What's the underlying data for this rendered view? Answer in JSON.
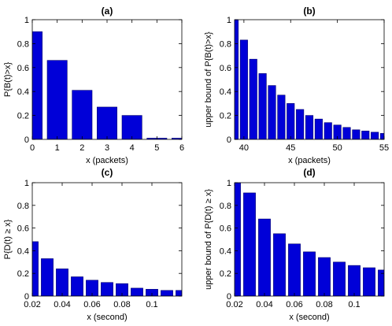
{
  "colors": {
    "bar": "#0000d8",
    "bar_edge": "#00006e",
    "axis": "#000000"
  },
  "chart_data": [
    {
      "id": "a",
      "type": "bar",
      "title": "(a)",
      "xlabel": "x (packets)",
      "ylabel": "P{B(t)>x}",
      "x": [
        0,
        1,
        2,
        3,
        4,
        5,
        6
      ],
      "values": [
        0.9,
        0.66,
        0.41,
        0.27,
        0.2,
        0.01,
        0.01
      ],
      "xlim": [
        0,
        6
      ],
      "ylim": [
        0,
        1
      ],
      "xticks": [
        0,
        1,
        2,
        3,
        4,
        5,
        6
      ],
      "xtick_labels": [
        "0",
        "1",
        "2",
        "3",
        "4",
        "5",
        "6"
      ],
      "yticks": [
        0,
        0.2,
        0.4,
        0.6,
        0.8,
        1
      ],
      "ytick_labels": [
        "0",
        "0.2",
        "0.4",
        "0.6",
        "0.8",
        "1"
      ],
      "grid": false
    },
    {
      "id": "b",
      "type": "bar",
      "title": "(b)",
      "xlabel": "x (packets)",
      "ylabel": "upper bound of P{B(t)>x}",
      "x": [
        39,
        40,
        41,
        42,
        43,
        44,
        45,
        46,
        47,
        48,
        49,
        50,
        51,
        52,
        53,
        54,
        55
      ],
      "values": [
        1.0,
        0.83,
        0.67,
        0.55,
        0.45,
        0.37,
        0.3,
        0.25,
        0.2,
        0.17,
        0.14,
        0.12,
        0.1,
        0.08,
        0.07,
        0.06,
        0.05
      ],
      "xlim": [
        39,
        55
      ],
      "ylim": [
        0,
        1
      ],
      "xticks": [
        40,
        45,
        50,
        55
      ],
      "xtick_labels": [
        "40",
        "45",
        "50",
        "55"
      ],
      "yticks": [
        0,
        0.2,
        0.4,
        0.6,
        0.8,
        1
      ],
      "ytick_labels": [
        "0",
        "0.2",
        "0.4",
        "0.6",
        "0.8",
        "1"
      ],
      "grid": false
    },
    {
      "id": "c",
      "type": "bar",
      "title": "(c)",
      "xlabel": "x (second)",
      "ylabel": "P{D(t) ≥ x}",
      "x": [
        0.02,
        0.03,
        0.04,
        0.05,
        0.06,
        0.07,
        0.08,
        0.09,
        0.1,
        0.11,
        0.12
      ],
      "values": [
        0.48,
        0.33,
        0.24,
        0.17,
        0.14,
        0.12,
        0.11,
        0.07,
        0.06,
        0.05,
        0.05
      ],
      "xlim": [
        0.02,
        0.12
      ],
      "ylim": [
        0,
        1
      ],
      "xticks": [
        0.02,
        0.04,
        0.06,
        0.08,
        0.1
      ],
      "xtick_labels": [
        "0.02",
        "0.04",
        "0.06",
        "0.08",
        "0.1"
      ],
      "yticks": [
        0,
        0.2,
        0.4,
        0.6,
        0.8,
        1
      ],
      "ytick_labels": [
        "0",
        "0.2",
        "0.4",
        "0.6",
        "0.8",
        "1"
      ],
      "grid": false
    },
    {
      "id": "d",
      "type": "bar",
      "title": "(d)",
      "xlabel": "x (second)",
      "ylabel": "upper bound of P{D(t) ≥ x}",
      "x": [
        0.02,
        0.03,
        0.04,
        0.05,
        0.06,
        0.07,
        0.08,
        0.09,
        0.1,
        0.11,
        0.12
      ],
      "values": [
        1.0,
        0.91,
        0.68,
        0.55,
        0.46,
        0.39,
        0.34,
        0.3,
        0.27,
        0.25,
        0.23
      ],
      "xlim": [
        0.02,
        0.12
      ],
      "ylim": [
        0,
        1
      ],
      "xticks": [
        0.02,
        0.04,
        0.06,
        0.08,
        0.1
      ],
      "xtick_labels": [
        "0.02",
        "0.04",
        "0.06",
        "0.08",
        "0.1"
      ],
      "yticks": [
        0,
        0.2,
        0.4,
        0.6,
        0.8,
        1
      ],
      "ytick_labels": [
        "0",
        "0.2",
        "0.4",
        "0.6",
        "0.8",
        "1"
      ],
      "grid": false
    }
  ]
}
